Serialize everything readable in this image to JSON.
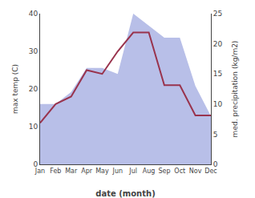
{
  "chart_data": {
    "type": "line",
    "xlabel": "date (month)",
    "ylabel": "max temp (C)",
    "y2label": "med. precipitation (kg/m2)",
    "categories": [
      "Jan",
      "Feb",
      "Mar",
      "Apr",
      "May",
      "Jun",
      "Jul",
      "Aug",
      "Sep",
      "Oct",
      "Nov",
      "Dec"
    ],
    "series": [
      {
        "type": "area",
        "axis": "y2",
        "color": "#b8bfe8",
        "values": [
          10,
          10,
          12,
          16,
          16,
          15,
          25,
          23,
          21,
          21,
          13,
          8
        ]
      },
      {
        "type": "line",
        "axis": "y",
        "color": "#99334d",
        "values": [
          11,
          16,
          18,
          25,
          24,
          30,
          35,
          35,
          21,
          21,
          13,
          13
        ]
      }
    ],
    "ylim": [
      0,
      40
    ],
    "yticks": [
      0,
      10,
      20,
      30,
      40
    ],
    "y2lim": [
      0,
      25
    ],
    "y2ticks": [
      0,
      5,
      10,
      15,
      20,
      25
    ],
    "grid": false
  }
}
